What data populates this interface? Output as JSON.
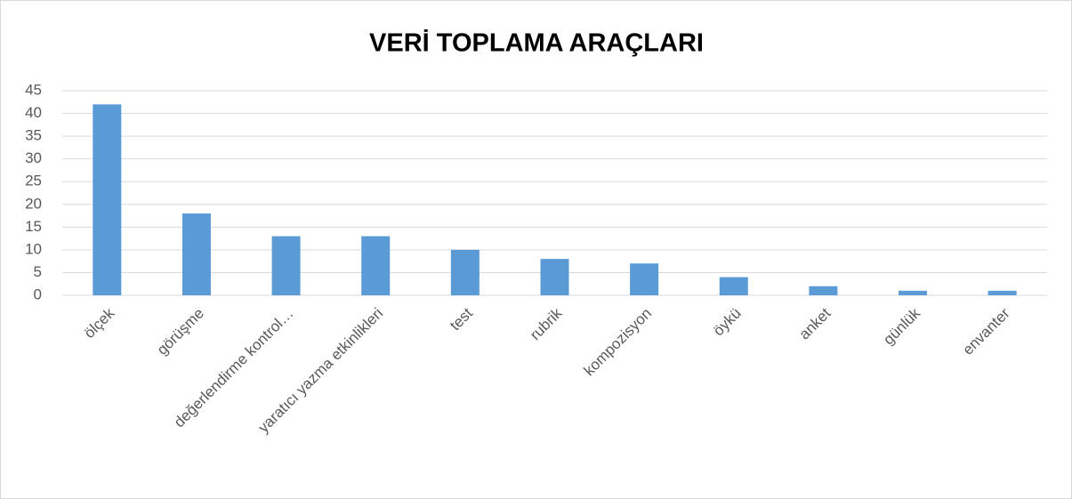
{
  "chart_data": {
    "type": "bar",
    "title": "VERİ TOPLAMA ARAÇLARI",
    "categories": [
      "ölçek",
      "görüşme",
      "değerlendirme kontrol…",
      "yaratıcı yazma etkinlikleri",
      "test",
      "rubrik",
      "kompozisyon",
      "öykü",
      "anket",
      "günlük",
      "envanter"
    ],
    "values": [
      42,
      18,
      13,
      13,
      10,
      8,
      7,
      4,
      2,
      1,
      1
    ],
    "color": "#5b9bd5",
    "ylim": [
      0,
      45
    ],
    "yticks": [
      0,
      5,
      10,
      15,
      20,
      25,
      30,
      35,
      40,
      45
    ],
    "grid": true
  }
}
